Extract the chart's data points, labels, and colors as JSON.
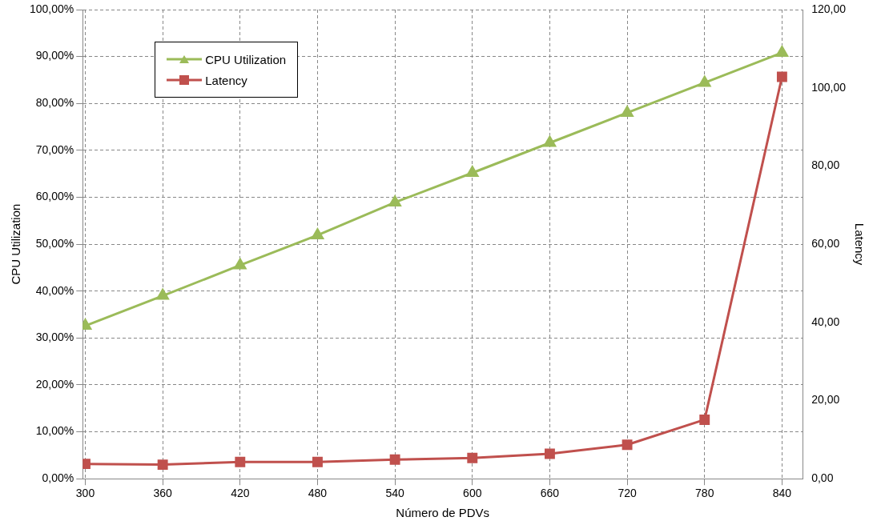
{
  "chart_data": {
    "type": "line",
    "xlabel": "Número de PDVs",
    "ylabel": "CPU Utilization",
    "y2label": "Latency",
    "x": [
      300,
      360,
      420,
      480,
      540,
      600,
      660,
      720,
      780,
      840
    ],
    "series": [
      {
        "name": "CPU Utilization",
        "color": "#9bbb59",
        "marker": "triangle",
        "values": [
          32.6,
          39.0,
          45.5,
          51.9,
          58.9,
          65.2,
          71.6,
          78.0,
          84.4,
          90.8
        ]
      },
      {
        "name": "Latency",
        "color": "#c0504d",
        "marker": "square",
        "axis": "y2",
        "values": [
          3.8,
          3.6,
          4.3,
          4.3,
          4.9,
          5.3,
          6.4,
          8.7,
          15.1,
          102.8
        ]
      }
    ],
    "xlim": [
      298,
      856
    ],
    "xticks": [
      300,
      360,
      420,
      480,
      540,
      600,
      660,
      720,
      780,
      840
    ],
    "ylim": [
      0,
      100
    ],
    "yticks": [
      {
        "value": 0,
        "label": "0,00%"
      },
      {
        "value": 10,
        "label": "10,00%"
      },
      {
        "value": 20,
        "label": "20,00%"
      },
      {
        "value": 30,
        "label": "30,00%"
      },
      {
        "value": 40,
        "label": "40,00%"
      },
      {
        "value": 50,
        "label": "50,00%"
      },
      {
        "value": 60,
        "label": "60,00%"
      },
      {
        "value": 70,
        "label": "70,00%"
      },
      {
        "value": 80,
        "label": "80,00%"
      },
      {
        "value": 90,
        "label": "90,00%"
      },
      {
        "value": 100,
        "label": "100,00%"
      }
    ],
    "y2lim": [
      0,
      120
    ],
    "y2ticks": [
      {
        "value": 0,
        "label": "0,00"
      },
      {
        "value": 20,
        "label": "20,00"
      },
      {
        "value": 40,
        "label": "40,00"
      },
      {
        "value": 60,
        "label": "60,00"
      },
      {
        "value": 80,
        "label": "80,00"
      },
      {
        "value": 100,
        "label": "100,00"
      },
      {
        "value": 120,
        "label": "120,00"
      }
    ],
    "grid": true,
    "line_style": "solid",
    "legend": "top left"
  }
}
